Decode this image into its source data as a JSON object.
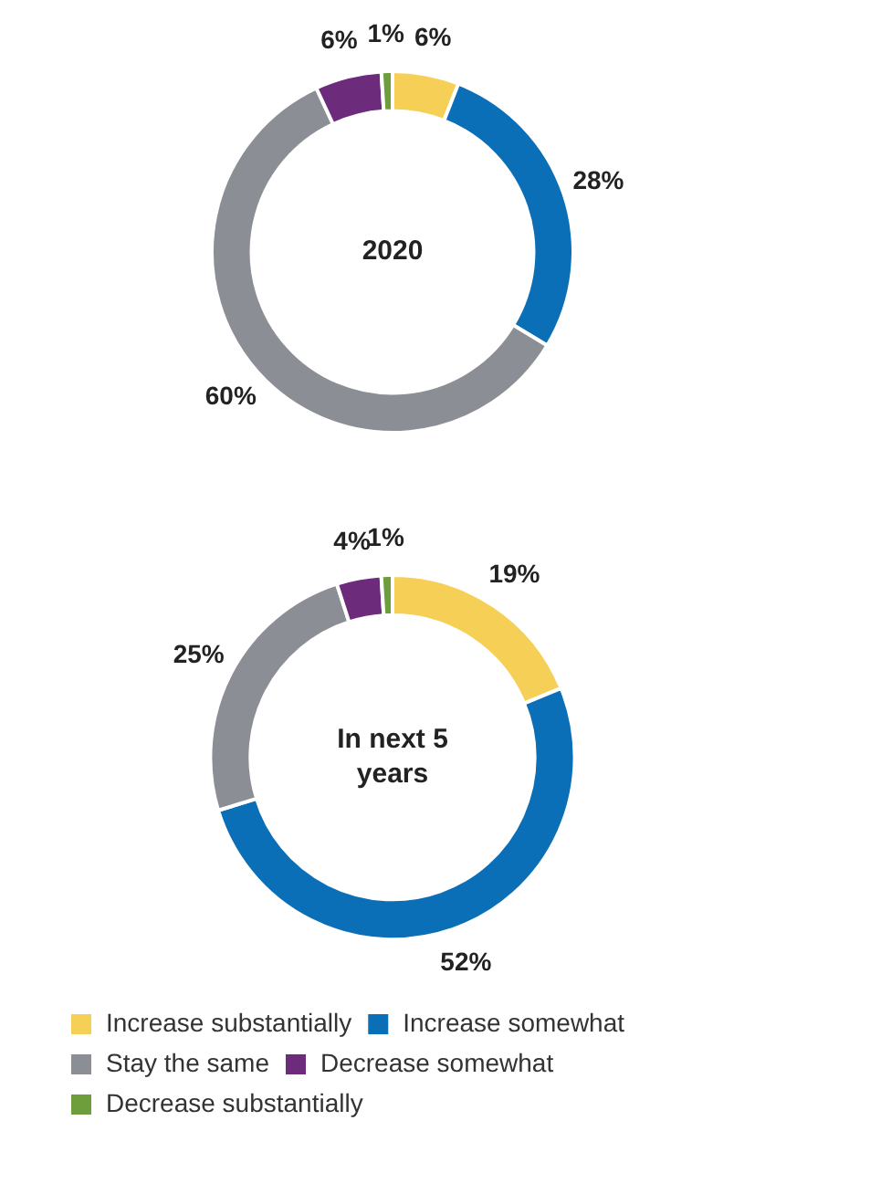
{
  "chart_data": [
    {
      "type": "donut",
      "title": "2020",
      "categories": [
        null,
        null,
        null,
        null,
        null
      ],
      "values": [
        6,
        28,
        60,
        6,
        1
      ],
      "value_labels": [
        "6%",
        "28%",
        "60%",
        "6%",
        "1%"
      ],
      "colors": [
        "#f6cf57",
        "#0b6fb8",
        "#8b8e94",
        "#6c2b7b",
        "#6e9e3c"
      ],
      "legend": false
    },
    {
      "type": "donut",
      "title": "In next 5 years",
      "categories": [
        "Increase substantially",
        "Increase somewhat",
        "Stay the same",
        "Decrease somewhat",
        "Decrease substantially"
      ],
      "values": [
        19,
        52,
        25,
        4,
        1
      ],
      "value_labels": [
        "19%",
        "52%",
        "25%",
        "4%",
        "1%"
      ],
      "colors": [
        "#f6cf57",
        "#0b6fb8",
        "#8b8e94",
        "#6c2b7b",
        "#6e9e3c"
      ],
      "legend": "bottom"
    }
  ]
}
